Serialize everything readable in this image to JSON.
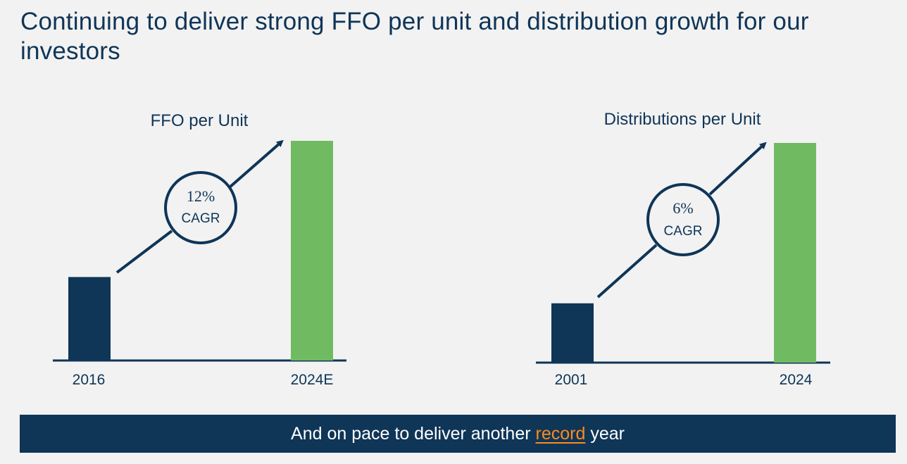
{
  "page": {
    "title": "Continuing to deliver strong FFO per unit and distribution growth for our investors"
  },
  "banner": {
    "prefix": "And on pace to deliver another ",
    "highlight": "record",
    "suffix": " year"
  },
  "colors": {
    "navy": "#0f3557",
    "green": "#70bb62",
    "orange": "#ff8a1c",
    "background": "#f2f2f2"
  },
  "chart_data": [
    {
      "type": "bar",
      "title": "FFO per Unit",
      "categories": [
        "2016",
        "2024E"
      ],
      "values": [
        38,
        100
      ],
      "value_note": "relative bar heights; no axis values shown",
      "ylim": [
        0,
        100
      ],
      "bar_colors": [
        "#0f3557",
        "#70bb62"
      ],
      "annotation": {
        "value": "12%",
        "label": "CAGR"
      },
      "xlabel": "",
      "ylabel": "",
      "grid": false
    },
    {
      "type": "bar",
      "title": "Distributions per Unit",
      "categories": [
        "2001",
        "2024"
      ],
      "values": [
        27,
        100
      ],
      "value_note": "relative bar heights; no axis values shown",
      "ylim": [
        0,
        100
      ],
      "bar_colors": [
        "#0f3557",
        "#70bb62"
      ],
      "annotation": {
        "value": "6%",
        "label": "CAGR"
      },
      "xlabel": "",
      "ylabel": "",
      "grid": false
    }
  ]
}
